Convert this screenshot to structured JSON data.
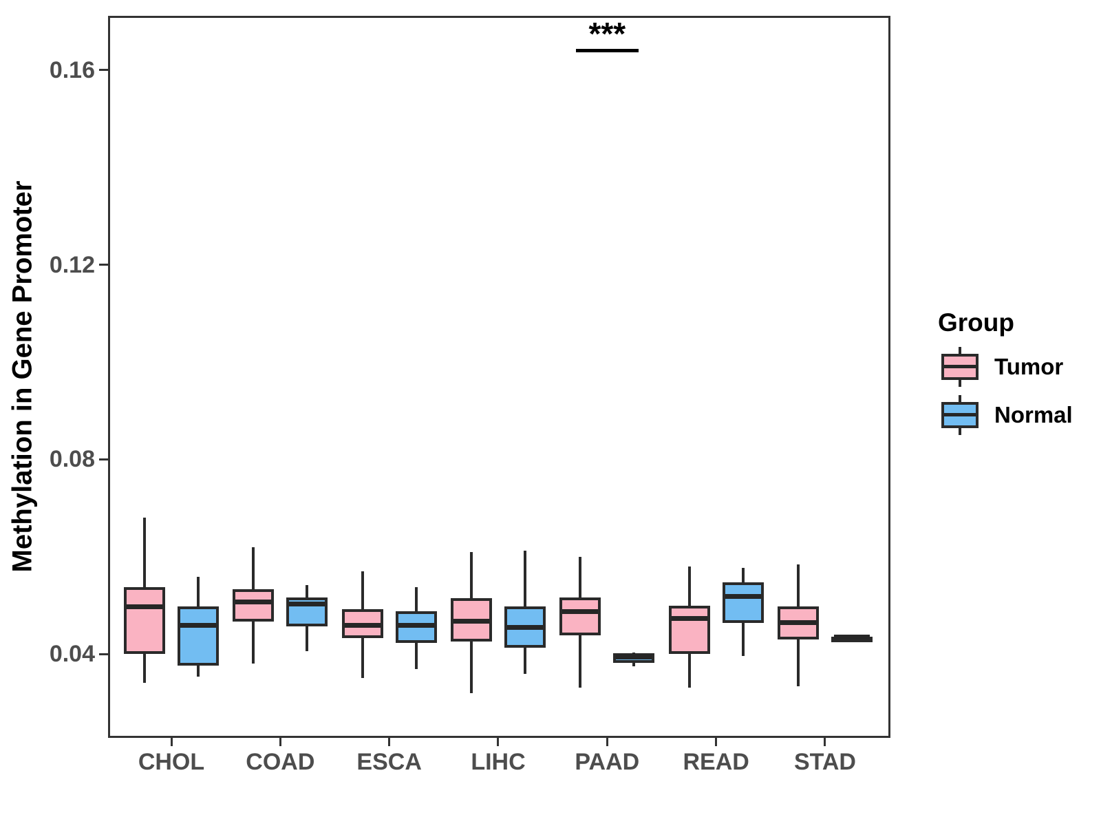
{
  "colors": {
    "tumor_fill": "#FAB3C2",
    "normal_fill": "#72BDF2",
    "line": "#2A2A2A",
    "panel_border": "#333333",
    "tick_label": "#4D4D4D",
    "axis_title": "#000000"
  },
  "legend": {
    "title": "Group",
    "items": [
      {
        "label": "Tumor",
        "color": "#FAB3C2"
      },
      {
        "label": "Normal",
        "color": "#72BDF2"
      }
    ]
  },
  "chart_data": {
    "type": "grouped_boxplot",
    "title": "",
    "xlabel": "",
    "ylabel": "Methylation in Gene Promoter",
    "categories": [
      "CHOL",
      "COAD",
      "ESCA",
      "LIHC",
      "PAAD",
      "READ",
      "STAD"
    ],
    "yticks": [
      0.04,
      0.08,
      0.12,
      0.16
    ],
    "ytick_labels": [
      "0.04",
      "0.08",
      "0.12",
      "0.16"
    ],
    "ylim": [
      0.022,
      0.172
    ],
    "grid": false,
    "legend_position": "right",
    "series": [
      {
        "name": "Tumor",
        "color": "#FAB3C2",
        "boxes": [
          {
            "category": "CHOL",
            "whisker_low": 0.034,
            "q1": 0.04,
            "median": 0.0497,
            "q3": 0.0537,
            "whisker_high": 0.068
          },
          {
            "category": "COAD",
            "whisker_low": 0.038,
            "q1": 0.0467,
            "median": 0.0507,
            "q3": 0.0533,
            "whisker_high": 0.062
          },
          {
            "category": "ESCA",
            "whisker_low": 0.035,
            "q1": 0.0433,
            "median": 0.0459,
            "q3": 0.0492,
            "whisker_high": 0.057
          },
          {
            "category": "LIHC",
            "whisker_low": 0.032,
            "q1": 0.0425,
            "median": 0.0467,
            "q3": 0.0514,
            "whisker_high": 0.061
          },
          {
            "category": "PAAD",
            "whisker_low": 0.033,
            "q1": 0.0438,
            "median": 0.0487,
            "q3": 0.0516,
            "whisker_high": 0.06
          },
          {
            "category": "READ",
            "whisker_low": 0.033,
            "q1": 0.04,
            "median": 0.0473,
            "q3": 0.0499,
            "whisker_high": 0.058
          },
          {
            "category": "STAD",
            "whisker_low": 0.0334,
            "q1": 0.0429,
            "median": 0.0465,
            "q3": 0.0498,
            "whisker_high": 0.0584
          }
        ]
      },
      {
        "name": "Normal",
        "color": "#72BDF2",
        "boxes": [
          {
            "category": "CHOL",
            "whisker_low": 0.0353,
            "q1": 0.0376,
            "median": 0.0459,
            "q3": 0.0498,
            "whisker_high": 0.0559
          },
          {
            "category": "COAD",
            "whisker_low": 0.0405,
            "q1": 0.0457,
            "median": 0.0503,
            "q3": 0.0516,
            "whisker_high": 0.0541
          },
          {
            "category": "ESCA",
            "whisker_low": 0.0369,
            "q1": 0.0423,
            "median": 0.0459,
            "q3": 0.0488,
            "whisker_high": 0.0537
          },
          {
            "category": "LIHC",
            "whisker_low": 0.0359,
            "q1": 0.0413,
            "median": 0.0454,
            "q3": 0.0498,
            "whisker_high": 0.0612
          },
          {
            "category": "PAAD",
            "whisker_low": 0.0374,
            "q1": 0.0381,
            "median": 0.0393,
            "q3": 0.0401,
            "whisker_high": 0.0403
          },
          {
            "category": "READ",
            "whisker_low": 0.0396,
            "q1": 0.0464,
            "median": 0.0518,
            "q3": 0.0547,
            "whisker_high": 0.0577
          },
          {
            "category": "STAD",
            "whisker_low": 0.0435,
            "q1": 0.0435,
            "median": 0.0435,
            "q3": 0.0435,
            "whisker_high": 0.0435
          }
        ]
      }
    ],
    "annotations": [
      {
        "category": "PAAD",
        "label": "***"
      }
    ]
  }
}
